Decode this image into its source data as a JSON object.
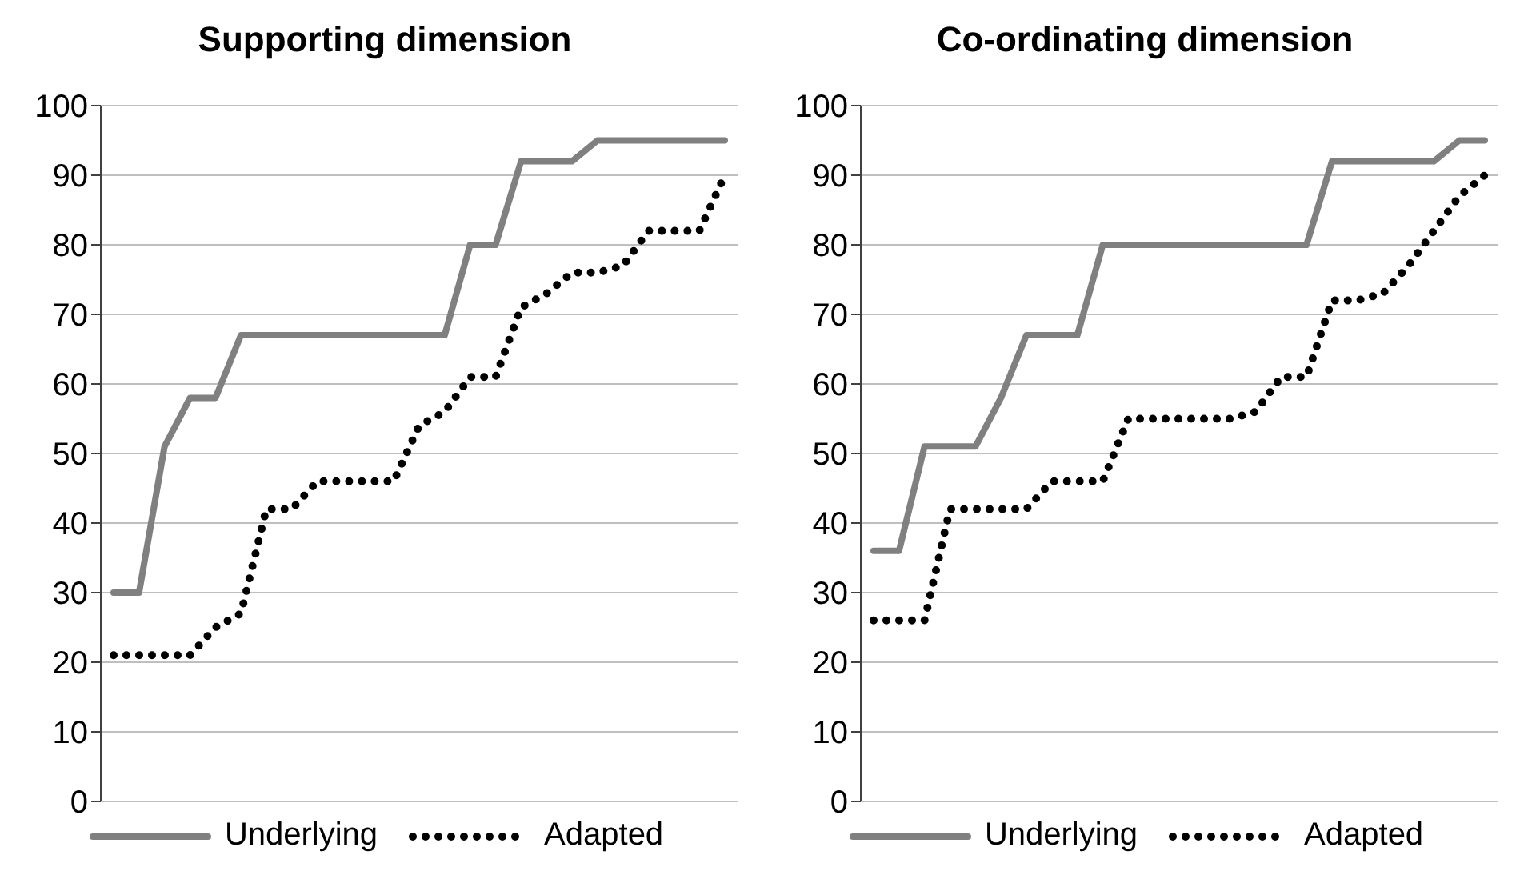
{
  "chart_data": [
    {
      "type": "line",
      "title": "Supporting dimension",
      "categories": [
        null,
        null,
        null,
        null,
        null,
        null,
        null,
        null,
        null,
        null,
        null,
        null,
        null,
        null,
        null,
        null,
        null,
        null,
        null,
        null,
        null,
        null,
        null,
        null,
        null
      ],
      "ylim": [
        0,
        100
      ],
      "yticks": [
        0,
        10,
        20,
        30,
        40,
        50,
        60,
        70,
        80,
        90,
        100
      ],
      "grid": "y",
      "legend": "bottom",
      "marker": "none",
      "series": [
        {
          "name": "Underlying",
          "color": "#808080",
          "line_style": "solid",
          "values": [
            30,
            30,
            51,
            58,
            58,
            67,
            67,
            67,
            67,
            67,
            67,
            67,
            67,
            67,
            80,
            80,
            92,
            92,
            92,
            95,
            95,
            95,
            95,
            95,
            95
          ]
        },
        {
          "name": "Adapted",
          "color": "#000000",
          "line_style": "dotted",
          "values": [
            21,
            21,
            21,
            21,
            25,
            27,
            42,
            42,
            46,
            46,
            46,
            46,
            54,
            56,
            61,
            61,
            71,
            73,
            76,
            76,
            77,
            82,
            82,
            82,
            90
          ]
        }
      ]
    },
    {
      "type": "line",
      "title": "Co-ordinating dimension",
      "categories": [
        null,
        null,
        null,
        null,
        null,
        null,
        null,
        null,
        null,
        null,
        null,
        null,
        null,
        null,
        null,
        null,
        null,
        null,
        null,
        null,
        null,
        null,
        null,
        null,
        null
      ],
      "ylim": [
        0,
        100
      ],
      "yticks": [
        0,
        10,
        20,
        30,
        40,
        50,
        60,
        70,
        80,
        90,
        100
      ],
      "grid": "y",
      "legend": "bottom",
      "marker": "none",
      "series": [
        {
          "name": "Underlying",
          "color": "#808080",
          "line_style": "solid",
          "values": [
            36,
            36,
            51,
            51,
            51,
            58,
            67,
            67,
            67,
            80,
            80,
            80,
            80,
            80,
            80,
            80,
            80,
            80,
            92,
            92,
            92,
            92,
            92,
            95,
            95
          ]
        },
        {
          "name": "Adapted",
          "color": "#000000",
          "line_style": "dotted",
          "values": [
            26,
            26,
            26,
            42,
            42,
            42,
            42,
            46,
            46,
            46,
            55,
            55,
            55,
            55,
            55,
            56,
            61,
            61,
            72,
            72,
            73,
            77,
            82,
            87,
            90
          ]
        }
      ]
    }
  ]
}
